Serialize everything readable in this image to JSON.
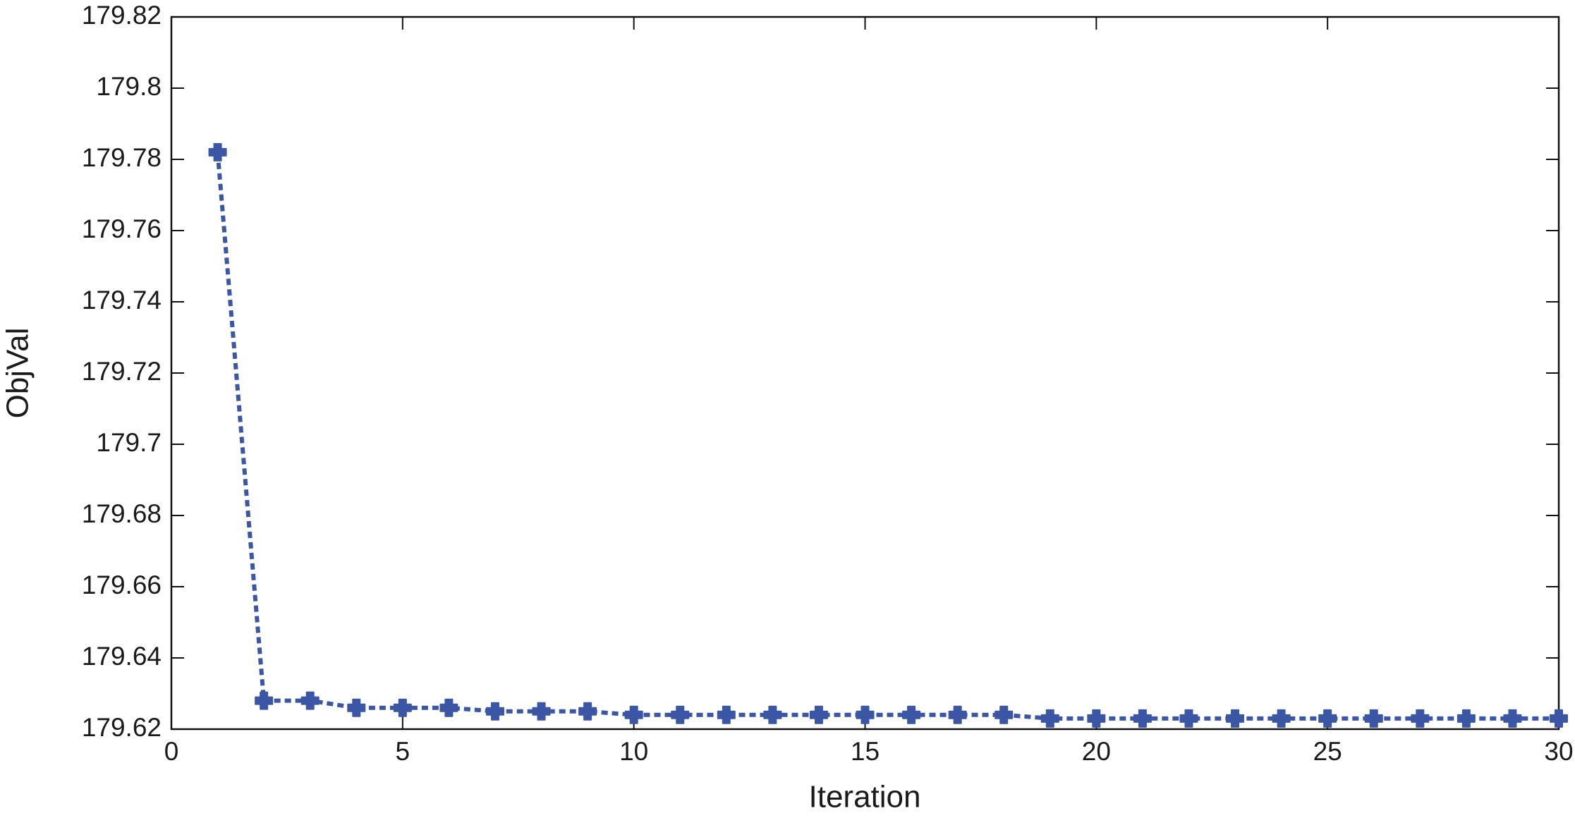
{
  "chart_data": {
    "type": "line",
    "x_label": "Iteration",
    "y_label": "ObjVal",
    "x": [
      1,
      2,
      3,
      4,
      5,
      6,
      7,
      8,
      9,
      10,
      11,
      12,
      13,
      14,
      15,
      16,
      17,
      18,
      19,
      20,
      21,
      22,
      23,
      24,
      25,
      26,
      27,
      28,
      29,
      30
    ],
    "series": [
      {
        "color": "#3a56a5",
        "values": [
          179.782,
          179.628,
          179.628,
          179.626,
          179.626,
          179.626,
          179.625,
          179.625,
          179.625,
          179.624,
          179.624,
          179.624,
          179.624,
          179.624,
          179.624,
          179.624,
          179.624,
          179.624,
          179.623,
          179.623,
          179.623,
          179.623,
          179.623,
          179.623,
          179.623,
          179.623,
          179.623,
          179.623,
          179.623,
          179.623
        ]
      }
    ],
    "xlim": [
      0,
      30
    ],
    "xticks": [
      0,
      5,
      10,
      15,
      20,
      25,
      30
    ],
    "ylim": [
      179.62,
      179.82
    ],
    "yticks": [
      179.62,
      179.64,
      179.66,
      179.68,
      179.7,
      179.72,
      179.74,
      179.76,
      179.78,
      179.8,
      179.82
    ],
    "grid": false
  }
}
